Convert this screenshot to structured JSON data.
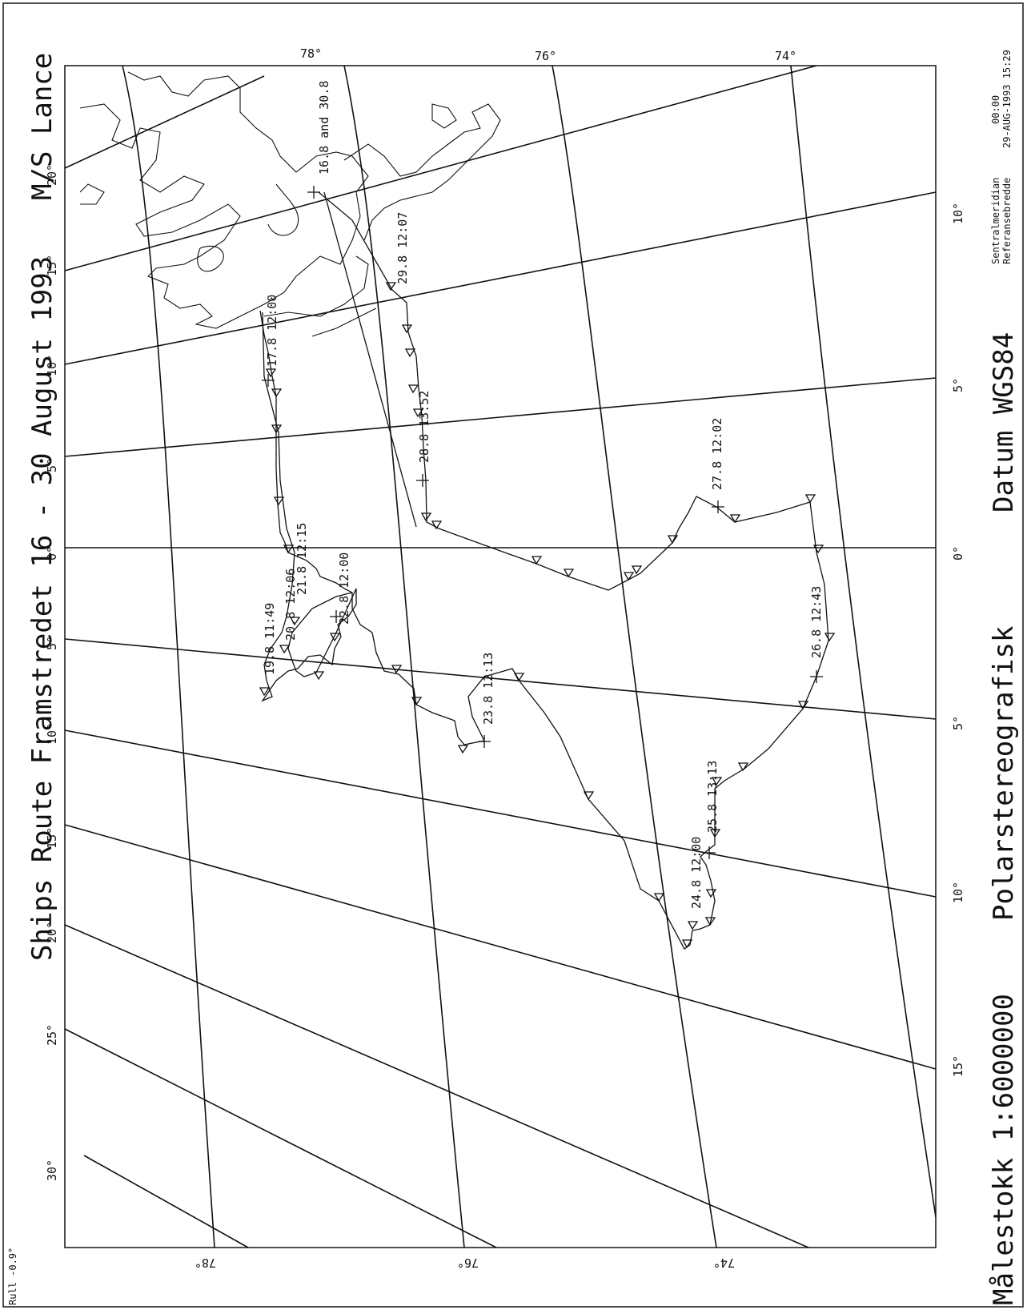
{
  "title": {
    "ship": "M/S Lance",
    "route": "Ships Route Framstredet 16 - 30 August 1993",
    "projection": "Polarstereografisk",
    "datum": "Datum WGS84",
    "scale": "Målestokk 1:6000000"
  },
  "info": {
    "central_meridian_label": "Sentralmeridian",
    "central_meridian_value": "00:00",
    "reference_label": "Referansebredde",
    "reference_value": "29-AUG-1993 15:29",
    "roll": "Rull  -0.9°"
  },
  "lat_ticks": {
    "top": [
      "78°",
      "76°",
      "74°"
    ],
    "bottom": [
      "78°",
      "76°",
      "74°"
    ]
  },
  "lon_ticks_east": [
    "10°",
    "5°",
    "0°",
    "5°",
    "10°",
    "15°"
  ],
  "lon_ticks_west": [
    "20°",
    "15°",
    "10°",
    "5°",
    "0°",
    "5°",
    "10°",
    "15°",
    "20°",
    "25°",
    "30°"
  ],
  "route_labels": [
    "16.8 and 30.8",
    "29.8 12:07",
    "17.8 12:00",
    "28.8 13:52",
    "27.8 12:02",
    "21.8 12:15",
    "22.8 12:00",
    "20.8 12:06",
    "19.8 11:49",
    "23.8 12:13",
    "26.8 12:43",
    "25.8 13:13",
    "24.8 12:00"
  ],
  "colors": {
    "ink": "#111111",
    "paper": "#ffffff"
  }
}
